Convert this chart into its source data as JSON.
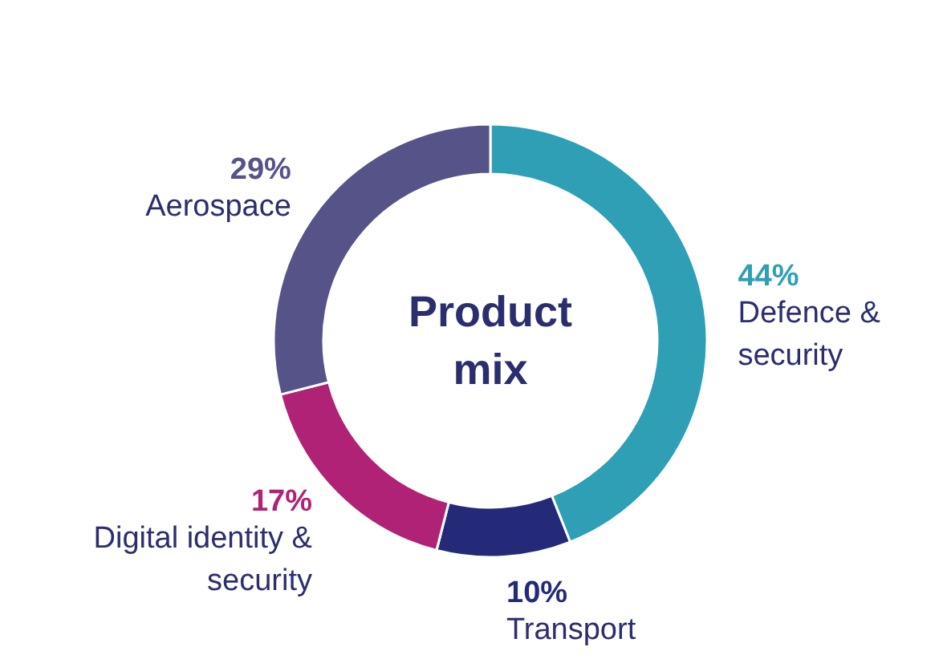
{
  "chart_data": {
    "type": "donut",
    "title": "Product mix",
    "categories": [
      "Defence & security",
      "Transport",
      "Digital identity & security",
      "Aerospace"
    ],
    "values": [
      44,
      10,
      17,
      29
    ],
    "colors": [
      "#2e9fb5",
      "#252a78",
      "#b02275",
      "#555388"
    ],
    "value_labels": [
      "44%",
      "10%",
      "17%",
      "29%"
    ]
  }
}
